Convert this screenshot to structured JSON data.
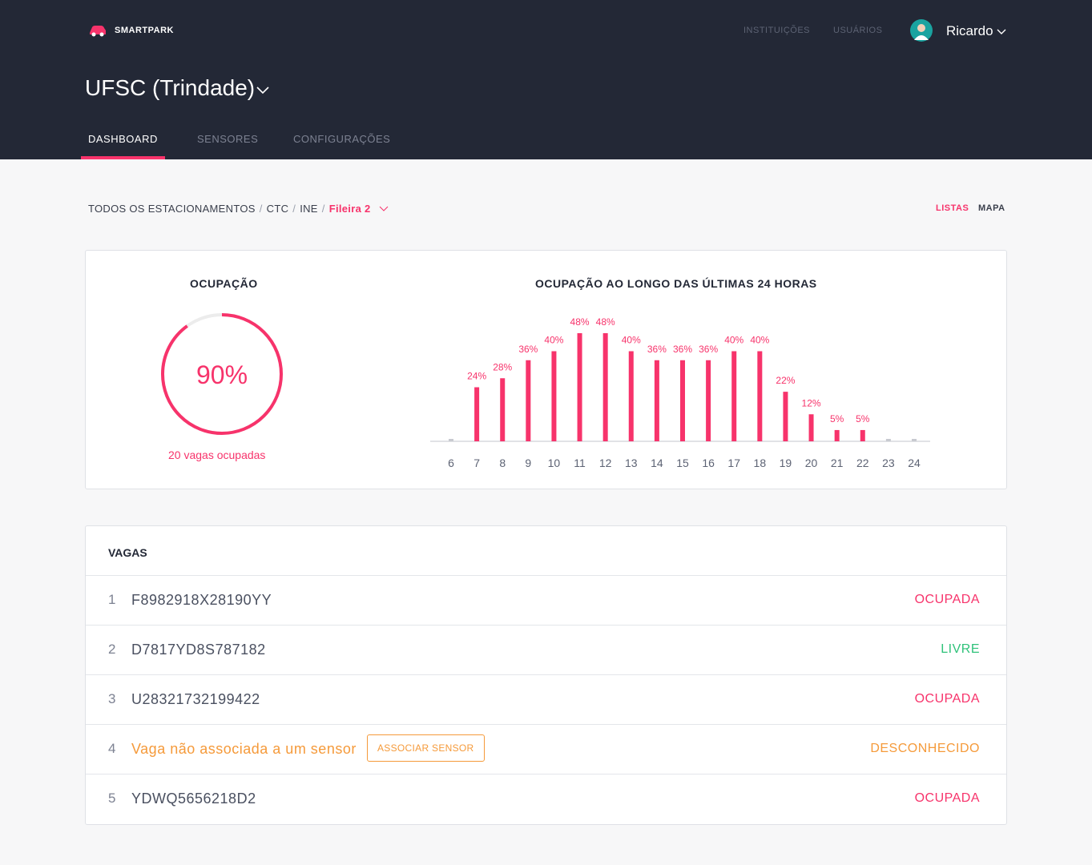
{
  "header": {
    "brand": "SMARTPARK",
    "nav": [
      "INSTITUIÇÕES",
      "USUÁRIOS"
    ],
    "user": "Ricardo",
    "institution": "UFSC (Trindade)",
    "tabs": [
      "DASHBOARD",
      "SENSORES",
      "CONFIGURAÇÕES"
    ]
  },
  "breadcrumb": {
    "items": [
      "TODOS OS ESTACIONAMENTOS",
      "CTC",
      "INE"
    ],
    "separator": "/",
    "current": "Fileira 2",
    "views": [
      "LISTAS",
      "MAPA"
    ]
  },
  "occupancy": {
    "title": "OCUPAÇÃO",
    "value": 90,
    "value_label": "90%",
    "caption": "20 vagas ocupadas"
  },
  "chart_data": {
    "type": "bar",
    "title": "OCUPAÇÃO AO LONGO DAS ÚLTIMAS 24 HORAS",
    "categories": [
      "6",
      "7",
      "8",
      "9",
      "10",
      "11",
      "12",
      "13",
      "14",
      "15",
      "16",
      "17",
      "18",
      "19",
      "20",
      "21",
      "22",
      "23",
      "24"
    ],
    "values": [
      0,
      24,
      28,
      36,
      40,
      48,
      48,
      40,
      36,
      36,
      36,
      40,
      40,
      22,
      12,
      5,
      5,
      0,
      0
    ],
    "value_labels": [
      null,
      "24%",
      "28%",
      "36%",
      "40%",
      "48%",
      "48%",
      "40%",
      "36%",
      "36%",
      "36%",
      "40%",
      "40%",
      "22%",
      "12%",
      "5%",
      "5%",
      null,
      null
    ],
    "color": "#f7336b"
  },
  "table": {
    "title": "VAGAS",
    "action": "ASSOCIAR SENSOR",
    "rows": [
      [
        "1",
        "F8982918X28190YY",
        "OCUPADA"
      ],
      [
        "2",
        "D7817YD8S787182",
        "LIVRE"
      ],
      [
        "3",
        "U28321732199422",
        "OCUPADA"
      ],
      [
        "4",
        "Vaga não associada a um sensor",
        "DESCONHECIDO"
      ],
      [
        "5",
        "YDWQ5656218D2",
        "OCUPADA"
      ]
    ]
  }
}
